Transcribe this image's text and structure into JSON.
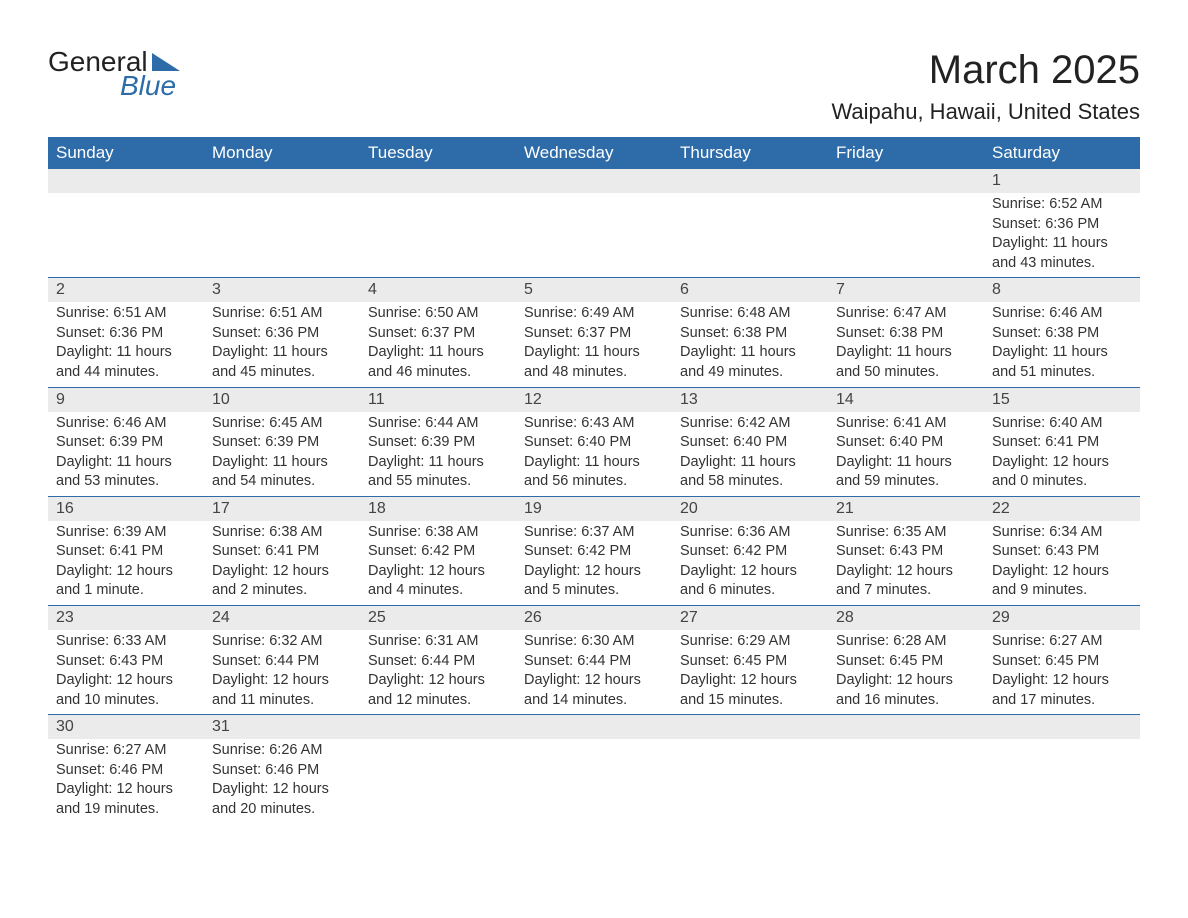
{
  "logo": {
    "text1": "General",
    "text2": "Blue"
  },
  "title": "March 2025",
  "location": "Waipahu, Hawaii, United States",
  "colors": {
    "header_bg": "#2d6ca8",
    "header_fg": "#ffffff",
    "daynum_bg": "#ebebeb",
    "rule": "#2d6ca8",
    "body_bg": "#ffffff",
    "text": "#333333"
  },
  "font": {
    "family": "Arial",
    "title_size": 40,
    "location_size": 22,
    "header_size": 17,
    "cell_size": 14.5
  },
  "weekdays": [
    "Sunday",
    "Monday",
    "Tuesday",
    "Wednesday",
    "Thursday",
    "Friday",
    "Saturday"
  ],
  "weeks": [
    [
      null,
      null,
      null,
      null,
      null,
      null,
      {
        "d": "1",
        "sr": "Sunrise: 6:52 AM",
        "ss": "Sunset: 6:36 PM",
        "dl1": "Daylight: 11 hours",
        "dl2": "and 43 minutes."
      }
    ],
    [
      {
        "d": "2",
        "sr": "Sunrise: 6:51 AM",
        "ss": "Sunset: 6:36 PM",
        "dl1": "Daylight: 11 hours",
        "dl2": "and 44 minutes."
      },
      {
        "d": "3",
        "sr": "Sunrise: 6:51 AM",
        "ss": "Sunset: 6:36 PM",
        "dl1": "Daylight: 11 hours",
        "dl2": "and 45 minutes."
      },
      {
        "d": "4",
        "sr": "Sunrise: 6:50 AM",
        "ss": "Sunset: 6:37 PM",
        "dl1": "Daylight: 11 hours",
        "dl2": "and 46 minutes."
      },
      {
        "d": "5",
        "sr": "Sunrise: 6:49 AM",
        "ss": "Sunset: 6:37 PM",
        "dl1": "Daylight: 11 hours",
        "dl2": "and 48 minutes."
      },
      {
        "d": "6",
        "sr": "Sunrise: 6:48 AM",
        "ss": "Sunset: 6:38 PM",
        "dl1": "Daylight: 11 hours",
        "dl2": "and 49 minutes."
      },
      {
        "d": "7",
        "sr": "Sunrise: 6:47 AM",
        "ss": "Sunset: 6:38 PM",
        "dl1": "Daylight: 11 hours",
        "dl2": "and 50 minutes."
      },
      {
        "d": "8",
        "sr": "Sunrise: 6:46 AM",
        "ss": "Sunset: 6:38 PM",
        "dl1": "Daylight: 11 hours",
        "dl2": "and 51 minutes."
      }
    ],
    [
      {
        "d": "9",
        "sr": "Sunrise: 6:46 AM",
        "ss": "Sunset: 6:39 PM",
        "dl1": "Daylight: 11 hours",
        "dl2": "and 53 minutes."
      },
      {
        "d": "10",
        "sr": "Sunrise: 6:45 AM",
        "ss": "Sunset: 6:39 PM",
        "dl1": "Daylight: 11 hours",
        "dl2": "and 54 minutes."
      },
      {
        "d": "11",
        "sr": "Sunrise: 6:44 AM",
        "ss": "Sunset: 6:39 PM",
        "dl1": "Daylight: 11 hours",
        "dl2": "and 55 minutes."
      },
      {
        "d": "12",
        "sr": "Sunrise: 6:43 AM",
        "ss": "Sunset: 6:40 PM",
        "dl1": "Daylight: 11 hours",
        "dl2": "and 56 minutes."
      },
      {
        "d": "13",
        "sr": "Sunrise: 6:42 AM",
        "ss": "Sunset: 6:40 PM",
        "dl1": "Daylight: 11 hours",
        "dl2": "and 58 minutes."
      },
      {
        "d": "14",
        "sr": "Sunrise: 6:41 AM",
        "ss": "Sunset: 6:40 PM",
        "dl1": "Daylight: 11 hours",
        "dl2": "and 59 minutes."
      },
      {
        "d": "15",
        "sr": "Sunrise: 6:40 AM",
        "ss": "Sunset: 6:41 PM",
        "dl1": "Daylight: 12 hours",
        "dl2": "and 0 minutes."
      }
    ],
    [
      {
        "d": "16",
        "sr": "Sunrise: 6:39 AM",
        "ss": "Sunset: 6:41 PM",
        "dl1": "Daylight: 12 hours",
        "dl2": "and 1 minute."
      },
      {
        "d": "17",
        "sr": "Sunrise: 6:38 AM",
        "ss": "Sunset: 6:41 PM",
        "dl1": "Daylight: 12 hours",
        "dl2": "and 2 minutes."
      },
      {
        "d": "18",
        "sr": "Sunrise: 6:38 AM",
        "ss": "Sunset: 6:42 PM",
        "dl1": "Daylight: 12 hours",
        "dl2": "and 4 minutes."
      },
      {
        "d": "19",
        "sr": "Sunrise: 6:37 AM",
        "ss": "Sunset: 6:42 PM",
        "dl1": "Daylight: 12 hours",
        "dl2": "and 5 minutes."
      },
      {
        "d": "20",
        "sr": "Sunrise: 6:36 AM",
        "ss": "Sunset: 6:42 PM",
        "dl1": "Daylight: 12 hours",
        "dl2": "and 6 minutes."
      },
      {
        "d": "21",
        "sr": "Sunrise: 6:35 AM",
        "ss": "Sunset: 6:43 PM",
        "dl1": "Daylight: 12 hours",
        "dl2": "and 7 minutes."
      },
      {
        "d": "22",
        "sr": "Sunrise: 6:34 AM",
        "ss": "Sunset: 6:43 PM",
        "dl1": "Daylight: 12 hours",
        "dl2": "and 9 minutes."
      }
    ],
    [
      {
        "d": "23",
        "sr": "Sunrise: 6:33 AM",
        "ss": "Sunset: 6:43 PM",
        "dl1": "Daylight: 12 hours",
        "dl2": "and 10 minutes."
      },
      {
        "d": "24",
        "sr": "Sunrise: 6:32 AM",
        "ss": "Sunset: 6:44 PM",
        "dl1": "Daylight: 12 hours",
        "dl2": "and 11 minutes."
      },
      {
        "d": "25",
        "sr": "Sunrise: 6:31 AM",
        "ss": "Sunset: 6:44 PM",
        "dl1": "Daylight: 12 hours",
        "dl2": "and 12 minutes."
      },
      {
        "d": "26",
        "sr": "Sunrise: 6:30 AM",
        "ss": "Sunset: 6:44 PM",
        "dl1": "Daylight: 12 hours",
        "dl2": "and 14 minutes."
      },
      {
        "d": "27",
        "sr": "Sunrise: 6:29 AM",
        "ss": "Sunset: 6:45 PM",
        "dl1": "Daylight: 12 hours",
        "dl2": "and 15 minutes."
      },
      {
        "d": "28",
        "sr": "Sunrise: 6:28 AM",
        "ss": "Sunset: 6:45 PM",
        "dl1": "Daylight: 12 hours",
        "dl2": "and 16 minutes."
      },
      {
        "d": "29",
        "sr": "Sunrise: 6:27 AM",
        "ss": "Sunset: 6:45 PM",
        "dl1": "Daylight: 12 hours",
        "dl2": "and 17 minutes."
      }
    ],
    [
      {
        "d": "30",
        "sr": "Sunrise: 6:27 AM",
        "ss": "Sunset: 6:46 PM",
        "dl1": "Daylight: 12 hours",
        "dl2": "and 19 minutes."
      },
      {
        "d": "31",
        "sr": "Sunrise: 6:26 AM",
        "ss": "Sunset: 6:46 PM",
        "dl1": "Daylight: 12 hours",
        "dl2": "and 20 minutes."
      },
      null,
      null,
      null,
      null,
      null
    ]
  ]
}
